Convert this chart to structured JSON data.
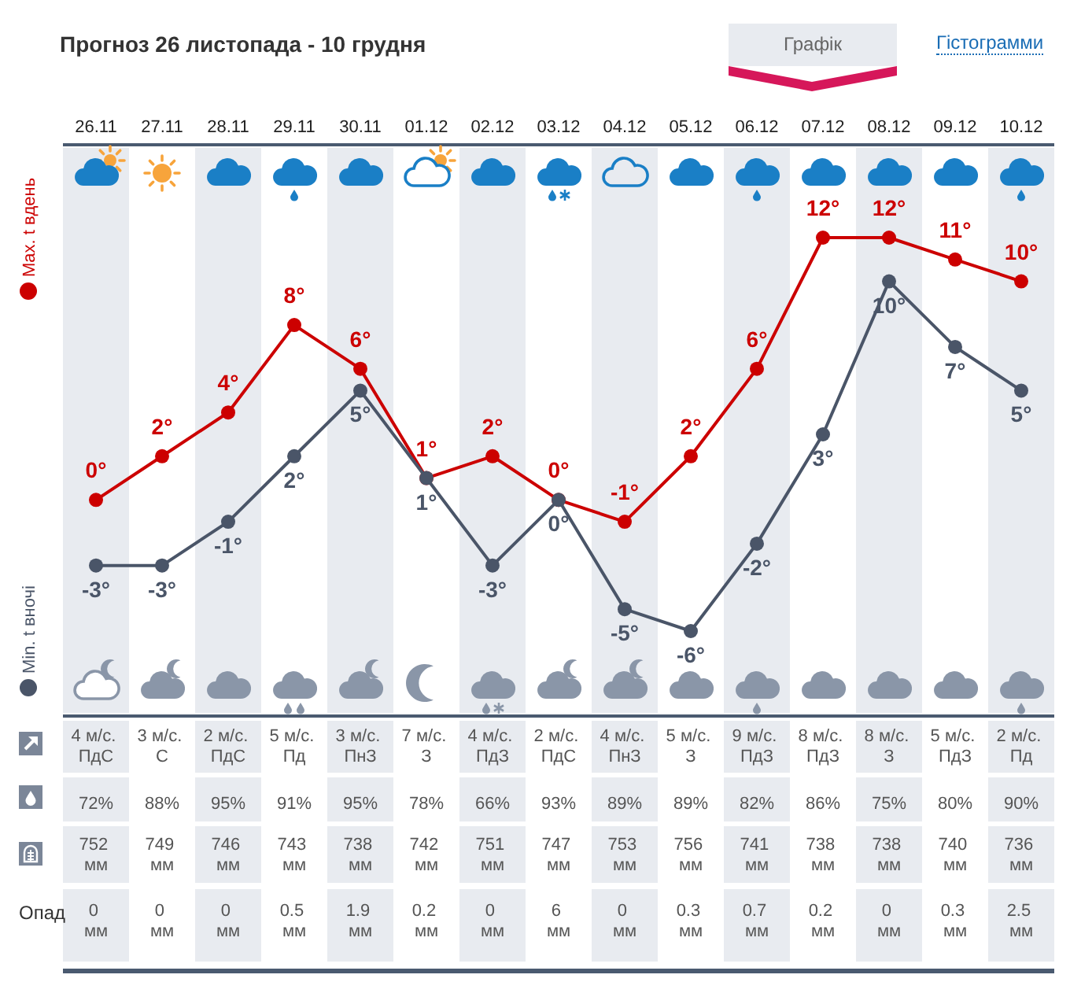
{
  "chart_data": {
    "type": "line",
    "title": "Прогноз 26 листопада - 10 грудня",
    "categories": [
      "26.11",
      "27.11",
      "28.11",
      "29.11",
      "30.11",
      "01.12",
      "02.12",
      "03.12",
      "04.12",
      "05.12",
      "06.12",
      "07.12",
      "08.12",
      "09.12",
      "10.12"
    ],
    "series": [
      {
        "name": "Max. t вдень",
        "color": "#cc0000",
        "values": [
          0,
          2,
          4,
          8,
          6,
          1,
          2,
          0,
          -1,
          2,
          6,
          12,
          12,
          11,
          10
        ],
        "value_labels": [
          "0°",
          "2°",
          "4°",
          "8°",
          "6°",
          "1°",
          "2°",
          "0°",
          "-1°",
          "2°",
          "6°",
          "12°",
          "12°",
          "11°",
          "10°"
        ]
      },
      {
        "name": "Min. t вночі",
        "color": "#4a5568",
        "values": [
          -3,
          -3,
          -1,
          2,
          5,
          1,
          -3,
          0,
          -5,
          -6,
          -2,
          3,
          10,
          7,
          5
        ],
        "value_labels": [
          "-3°",
          "-3°",
          "-1°",
          "2°",
          "5°",
          "1°",
          "-3°",
          "0°",
          "-5°",
          "-6°",
          "-2°",
          "3°",
          "10°",
          "7°",
          "5°"
        ]
      }
    ],
    "marker": "circle",
    "line_style": "solid",
    "legend": "left",
    "tick_labels": "x",
    "annotations": [
      "Графік",
      "Гістограмми",
      "Опад",
      "4 м/с. ПдС",
      "3 м/с. С",
      "2 м/с. ПдС",
      "5 м/с. Пд",
      "3 м/с. ПнЗ",
      "7 м/с. З",
      "4 м/с. ПдЗ",
      "2 м/с. ПдС",
      "4 м/с. ПнЗ",
      "5 м/с. З",
      "9 м/с. ПдЗ",
      "8 м/с. ПдЗ",
      "8 м/с. З",
      "5 м/с. ПдЗ",
      "2 м/с. Пд",
      "72%",
      "88%",
      "95%",
      "91%",
      "95%",
      "78%",
      "66%",
      "93%",
      "89%",
      "89%",
      "82%",
      "86%",
      "75%",
      "80%",
      "90%",
      "752 мм",
      "749 мм",
      "746 мм",
      "743 мм",
      "738 мм",
      "742 мм",
      "751 мм",
      "747 мм",
      "753 мм",
      "756 мм",
      "741 мм",
      "738 мм",
      "738 мм",
      "740 мм",
      "736 мм",
      "0 мм",
      "0 мм",
      "0 мм",
      "0.5 мм",
      "1.9 мм",
      "0.2 мм",
      "0 мм",
      "6 мм",
      "0 мм",
      "0.3 мм",
      "0.7 мм",
      "0.2 мм",
      "0 мм",
      "0.3 мм",
      "2.5 мм"
    ]
  }
}
